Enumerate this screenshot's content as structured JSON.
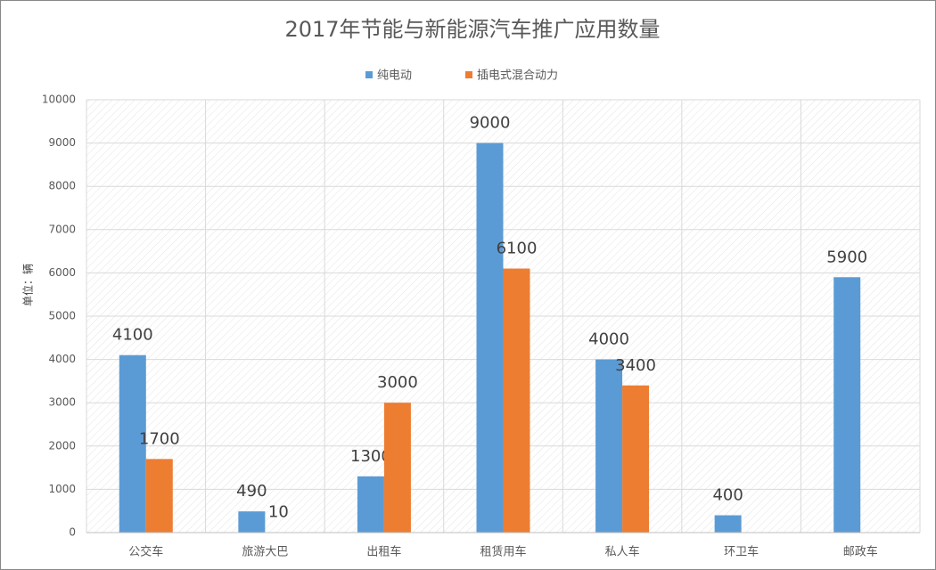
{
  "chart_data": {
    "type": "bar",
    "title": "2017年节能与新能源汽车推广应用数量",
    "y_label": "单位：辆",
    "categories": [
      "公交车",
      "旅游大巴",
      "出租车",
      "租赁用车",
      "私人车",
      "环卫车",
      "邮政车"
    ],
    "series": [
      {
        "name": "纯电动",
        "color": "#5b9bd5",
        "values": [
          4100,
          490,
          1300,
          9000,
          4000,
          400,
          5900
        ]
      },
      {
        "name": "插电式混合动力",
        "color": "#ed7d31",
        "values": [
          1700,
          10,
          3000,
          6100,
          3400,
          null,
          null
        ]
      }
    ],
    "ylim": [
      0,
      10000
    ],
    "yticks": [
      0,
      1000,
      2000,
      3000,
      4000,
      5000,
      6000,
      7000,
      8000,
      9000,
      10000
    ],
    "grid": true,
    "legend": "top"
  }
}
